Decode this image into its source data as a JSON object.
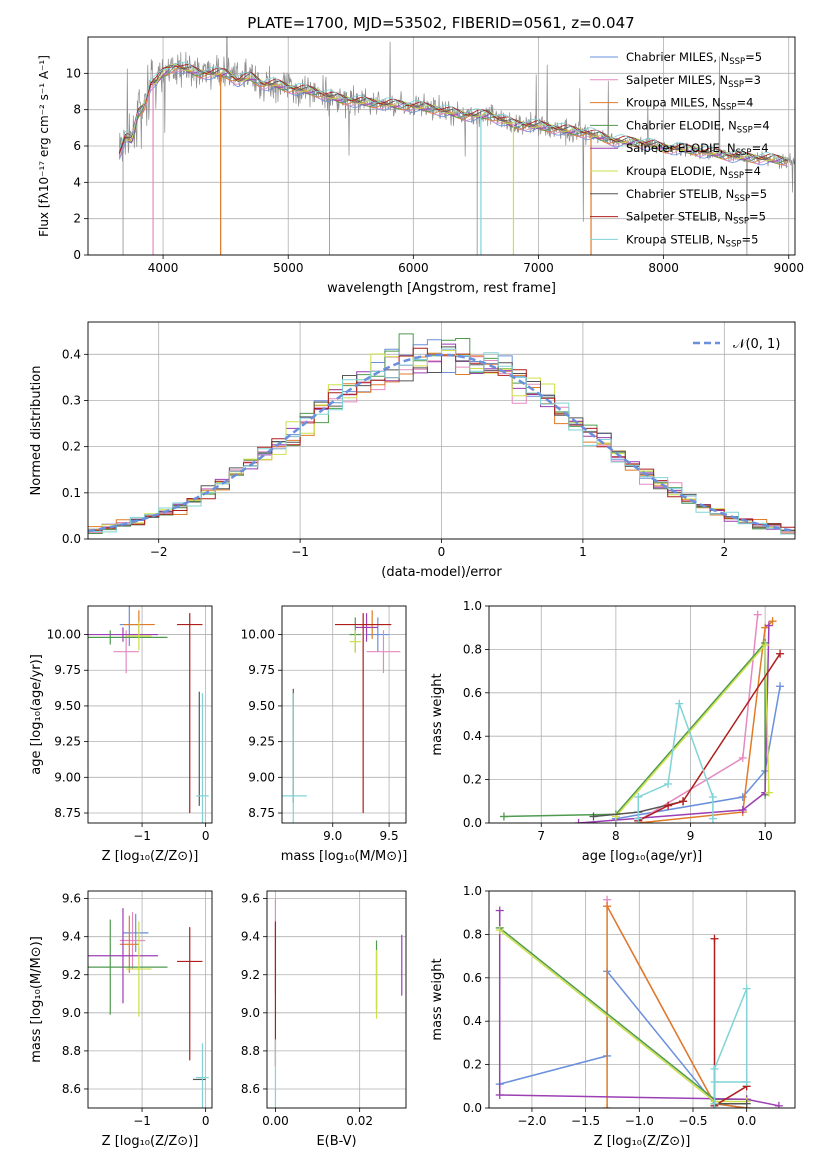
{
  "figure": {
    "title": "PLATE=1700, MJD=53502, FIBERID=0561, z=0.047"
  },
  "colors": {
    "Chabrier MILES": "#6a8fdc",
    "Salpeter MILES": "#e58ac0",
    "Kroupa MILES": "#e07b28",
    "Chabrier ELODIE": "#4f9a4f",
    "Salpeter ELODIE": "#9b3fb3",
    "Kroupa ELODIE": "#cde04a",
    "Chabrier STELIB": "#555555",
    "Salpeter STELIB": "#b01d1d",
    "Kroupa STELIB": "#80d3d6",
    "data": "#8c8c8c"
  },
  "chart_data": [
    {
      "id": "spectrum",
      "type": "line",
      "xlabel": "wavelength [Angstrom, rest frame]",
      "ylabel": "Flux [fλ10⁻¹⁷ erg cm⁻² s⁻¹ A⁻¹]",
      "xlim": [
        3400,
        9050
      ],
      "ylim": [
        0,
        12
      ],
      "xticks": [
        4000,
        5000,
        6000,
        7000,
        8000,
        9000
      ],
      "yticks": [
        0,
        2,
        4,
        6,
        8,
        10
      ],
      "legend_position": "top-right",
      "legend": [
        "Chabrier MILES, N_SSP=5",
        "Salpeter MILES, N_SSP=3",
        "Kroupa MILES, N_SSP=4",
        "Chabrier ELODIE, N_SSP=4",
        "Salpeter ELODIE, N_SSP=4",
        "Kroupa ELODIE, N_SSP=4",
        "Chabrier STELIB, N_SSP=5",
        "Salpeter STELIB, N_SSP=5",
        "Kroupa STELIB, N_SSP=5"
      ],
      "data_series": {
        "x": [
          3650,
          3700,
          3750,
          3800,
          3850,
          3900,
          3950,
          4000,
          4050,
          4100,
          4150,
          4200,
          4300,
          4400,
          4500,
          4600,
          4700,
          4800,
          4900,
          5000,
          5200,
          5400,
          5600,
          5800,
          6000,
          6200,
          6400,
          6600,
          6800,
          7000,
          7200,
          7400,
          7600,
          7800,
          8000,
          8200,
          8400,
          8600,
          8800,
          9000
        ],
        "y": [
          5.6,
          6.5,
          6.3,
          7.8,
          8.2,
          9.4,
          9.6,
          10.0,
          10.2,
          10.4,
          10.3,
          10.2,
          10.0,
          10.0,
          10.0,
          9.6,
          9.8,
          9.4,
          9.4,
          9.2,
          9.0,
          8.6,
          8.4,
          8.3,
          8.2,
          8.0,
          7.7,
          7.7,
          7.2,
          7.1,
          6.9,
          6.7,
          6.3,
          6.2,
          5.9,
          5.8,
          5.6,
          5.4,
          5.3,
          5.2
        ]
      },
      "model_dips": [
        {
          "series": "Salpeter MILES",
          "x": 3920
        },
        {
          "series": "Kroupa MILES",
          "x": 4460
        },
        {
          "series": "Kroupa STELIB",
          "x": 6540
        },
        {
          "series": "Kroupa ELODIE",
          "x": 6800
        },
        {
          "series": "Kroupa MILES",
          "x": 7420
        }
      ]
    },
    {
      "id": "residuals",
      "type": "histogram",
      "xlabel": "(data-model)/error",
      "ylabel": "Normed distribution",
      "xlim": [
        -2.5,
        2.5
      ],
      "ylim": [
        0,
        0.47
      ],
      "xticks": [
        -2,
        -1,
        0,
        1,
        2
      ],
      "yticks": [
        0.0,
        0.1,
        0.2,
        0.3,
        0.4
      ],
      "grid": true,
      "legend_position": "top-right",
      "legend": [
        "𝒩(0, 1)"
      ],
      "curve": {
        "name": "𝒩(0, 1)",
        "mean": 0,
        "sigma": 1,
        "style": "dashed"
      },
      "bin_width": 0.1
    },
    {
      "id": "age-vs-Z",
      "type": "errorbar",
      "xlabel": "Z [log₁₀(Z/Z⊙)]",
      "ylabel": "age  [log₁₀(age/yr)]",
      "xlim": [
        -1.85,
        0.1
      ],
      "ylim": [
        8.68,
        10.2
      ],
      "xticks": [
        -1,
        0
      ],
      "yticks": [
        8.75,
        9.0,
        9.25,
        9.5,
        9.75,
        10.0
      ],
      "points": [
        {
          "series": "Chabrier MILES",
          "x": -1.2,
          "y": 10.07,
          "xerr": 0.15,
          "yerr": 0.15
        },
        {
          "series": "Salpeter MILES",
          "x": -1.25,
          "y": 9.88,
          "xerr": 0.2,
          "yerr": 0.15
        },
        {
          "series": "Kroupa MILES",
          "x": -1.05,
          "y": 10.07,
          "xerr": 0.25,
          "yerr": 0.1
        },
        {
          "series": "Chabrier ELODIE",
          "x": -1.5,
          "y": 9.98,
          "xerr": 0.9,
          "yerr": 0.05
        },
        {
          "series": "Salpeter ELODIE",
          "x": -1.3,
          "y": 10.0,
          "xerr": 0.55,
          "yerr": 0.05
        },
        {
          "series": "Kroupa ELODIE",
          "x": -1.05,
          "y": 9.99,
          "xerr": 0.2,
          "yerr": 0.1
        },
        {
          "series": "Chabrier STELIB",
          "x": -0.1,
          "y": 9.2,
          "xerr": 0.0,
          "yerr": 0.4
        },
        {
          "series": "Salpeter STELIB",
          "x": -0.25,
          "y": 10.07,
          "xerr": 0.2,
          "yerr": 0.0
        },
        {
          "series": "Salpeter STELIB",
          "x": -0.25,
          "y": 9.45,
          "xerr": 0.0,
          "yerr": 0.7
        },
        {
          "series": "Kroupa STELIB",
          "x": -0.05,
          "y": 8.87,
          "xerr": 0.1,
          "yerr": 0.72
        }
      ]
    },
    {
      "id": "age-vs-mass",
      "type": "errorbar",
      "xlabel": "mass [log₁₀(M/M⊙)]",
      "ylabel": "",
      "xlim": [
        8.55,
        9.65
      ],
      "ylim": [
        8.68,
        10.2
      ],
      "xticks": [
        9.0,
        9.5
      ],
      "yticks": [
        8.75,
        9.0,
        9.25,
        9.5,
        9.75,
        10.0
      ],
      "points": [
        {
          "series": "Chabrier MILES",
          "x": 9.4,
          "y": 10.0,
          "xerr": 0.1,
          "yerr": 0.12
        },
        {
          "series": "Salpeter MILES",
          "x": 9.45,
          "y": 9.88,
          "xerr": 0.15,
          "yerr": 0.15
        },
        {
          "series": "Kroupa MILES",
          "x": 9.35,
          "y": 10.07,
          "xerr": 0.1,
          "yerr": 0.1
        },
        {
          "series": "Chabrier ELODIE",
          "x": 9.2,
          "y": 10.0,
          "xerr": 0.05,
          "yerr": 0.12
        },
        {
          "series": "Salpeter ELODIE",
          "x": 9.3,
          "y": 10.05,
          "xerr": 0.1,
          "yerr": 0.1
        },
        {
          "series": "Kroupa ELODIE",
          "x": 9.2,
          "y": 9.95,
          "xerr": 0.05,
          "yerr": 0.08
        },
        {
          "series": "Chabrier STELIB",
          "x": 8.65,
          "y": 9.22,
          "xerr": 0.0,
          "yerr": 0.4
        },
        {
          "series": "Salpeter STELIB",
          "x": 9.27,
          "y": 10.07,
          "xerr": 0.25,
          "yerr": 0.0
        },
        {
          "series": "Salpeter STELIB",
          "x": 9.27,
          "y": 9.45,
          "xerr": 0.0,
          "yerr": 0.7
        },
        {
          "series": "Kroupa STELIB",
          "x": 8.65,
          "y": 8.87,
          "xerr": 0.12,
          "yerr": 0.72
        }
      ]
    },
    {
      "id": "weight-vs-age",
      "type": "line",
      "xlabel": "age  [log₁₀(age/yr)]",
      "ylabel": "mass weight",
      "xlim": [
        6.3,
        10.4
      ],
      "ylim": [
        0,
        1.0
      ],
      "xticks": [
        7,
        8,
        9,
        10
      ],
      "yticks": [
        0.0,
        0.2,
        0.4,
        0.6,
        0.8,
        1.0
      ],
      "grid": true,
      "series": [
        {
          "name": "Chabrier MILES",
          "x": [
            8.0,
            9.7,
            10.0,
            10.2
          ],
          "y": [
            0.02,
            0.12,
            0.24,
            0.63
          ]
        },
        {
          "name": "Salpeter MILES",
          "x": [
            8.3,
            9.7,
            9.9
          ],
          "y": [
            0.01,
            0.3,
            0.96
          ]
        },
        {
          "name": "Kroupa MILES",
          "x": [
            8.3,
            9.7,
            10.0,
            10.1
          ],
          "y": [
            0.0,
            0.05,
            0.9,
            0.93
          ]
        },
        {
          "name": "Chabrier ELODIE",
          "x": [
            6.5,
            8.0,
            10.0,
            10.0
          ],
          "y": [
            0.03,
            0.04,
            0.83,
            0.13
          ]
        },
        {
          "name": "Salpeter ELODIE",
          "x": [
            7.5,
            9.7,
            10.0,
            10.05
          ],
          "y": [
            0.0,
            0.06,
            0.14,
            0.91
          ]
        },
        {
          "name": "Kroupa ELODIE",
          "x": [
            8.0,
            10.0,
            10.05
          ],
          "y": [
            0.03,
            0.82,
            0.14
          ]
        },
        {
          "name": "Chabrier STELIB",
          "x": [
            7.7,
            8.3,
            8.9
          ],
          "y": [
            0.03,
            0.05,
            0.1
          ]
        },
        {
          "name": "Salpeter STELIB",
          "x": [
            8.3,
            8.7,
            8.9,
            10.2
          ],
          "y": [
            0.01,
            0.08,
            0.1,
            0.78
          ]
        },
        {
          "name": "Kroupa STELIB",
          "x": [
            8.3,
            8.3,
            8.7,
            8.85,
            9.3,
            9.3
          ],
          "y": [
            0.02,
            0.12,
            0.18,
            0.55,
            0.12,
            0.02
          ]
        }
      ]
    },
    {
      "id": "mass-vs-Z",
      "type": "errorbar",
      "xlabel": "Z [log₁₀(Z/Z⊙)]",
      "ylabel": "mass [log₁₀(M/M⊙)]",
      "xlim": [
        -1.85,
        0.1
      ],
      "ylim": [
        8.5,
        9.64
      ],
      "xticks": [
        -1,
        0
      ],
      "yticks": [
        8.6,
        8.8,
        9.0,
        9.2,
        9.4,
        9.6
      ],
      "points": [
        {
          "series": "Chabrier MILES",
          "x": -1.1,
          "y": 9.42,
          "xerr": 0.2,
          "yerr": 0.1
        },
        {
          "series": "Salpeter MILES",
          "x": -1.15,
          "y": 9.38,
          "xerr": 0.2,
          "yerr": 0.15
        },
        {
          "series": "Kroupa MILES",
          "x": -1.2,
          "y": 9.36,
          "xerr": 0.15,
          "yerr": 0.15
        },
        {
          "series": "Chabrier ELODIE",
          "x": -1.5,
          "y": 9.24,
          "xerr": 0.9,
          "yerr": 0.25
        },
        {
          "series": "Salpeter ELODIE",
          "x": -1.3,
          "y": 9.3,
          "xerr": 0.55,
          "yerr": 0.25
        },
        {
          "series": "Kroupa ELODIE",
          "x": -1.05,
          "y": 9.23,
          "xerr": 0.2,
          "yerr": 0.25
        },
        {
          "series": "Chabrier STELIB",
          "x": -0.1,
          "y": 8.65,
          "xerr": 0.1,
          "yerr": 0.0
        },
        {
          "series": "Salpeter STELIB",
          "x": -0.25,
          "y": 9.27,
          "xerr": 0.2,
          "yerr": 0.0
        },
        {
          "series": "Salpeter STELIB",
          "x": -0.25,
          "y": 9.1,
          "xerr": 0.0,
          "yerr": 0.35
        },
        {
          "series": "Kroupa STELIB",
          "x": -0.05,
          "y": 8.66,
          "xerr": 0.1,
          "yerr": 0.18
        }
      ]
    },
    {
      "id": "mass-vs-EBV",
      "type": "errorbar",
      "xlabel": "E(B-V)",
      "ylabel": "",
      "xlim": [
        -0.002,
        0.031
      ],
      "ylim": [
        8.5,
        9.64
      ],
      "xticks": [
        0.0,
        0.02
      ],
      "yticks": [
        8.6,
        8.8,
        9.0,
        9.2,
        9.4,
        9.6
      ],
      "points": [
        {
          "series": "Salpeter MILES",
          "x": 0.0,
          "y": 9.35,
          "xerr": 0.0,
          "yerr": 0.25
        },
        {
          "series": "Salpeter STELIB",
          "x": 0.0,
          "y": 9.1,
          "xerr": 0.0,
          "yerr": 0.38
        },
        {
          "series": "Kroupa STELIB",
          "x": 0.0,
          "y": 8.66,
          "xerr": 0.0,
          "yerr": 0.2
        },
        {
          "series": "Chabrier ELODIE",
          "x": 0.024,
          "y": 9.2,
          "xerr": 0.0,
          "yerr": 0.18
        },
        {
          "series": "Kroupa ELODIE",
          "x": 0.024,
          "y": 9.15,
          "xerr": 0.0,
          "yerr": 0.18
        },
        {
          "series": "Salpeter ELODIE",
          "x": 0.03,
          "y": 9.25,
          "xerr": 0.0,
          "yerr": 0.16
        }
      ]
    },
    {
      "id": "weight-vs-Z",
      "type": "line",
      "xlabel": "Z [log₁₀(Z/Z⊙)]",
      "ylabel": "mass weight",
      "xlim": [
        -2.4,
        0.45
      ],
      "ylim": [
        0,
        1.0
      ],
      "xticks": [
        -2.0,
        -1.5,
        -1.0,
        -0.5,
        0.0
      ],
      "yticks": [
        0.0,
        0.2,
        0.4,
        0.6,
        0.8,
        1.0
      ],
      "grid": true,
      "series": [
        {
          "name": "Chabrier MILES",
          "x": [
            -2.3,
            -1.3,
            -1.3,
            -0.3,
            0.0
          ],
          "y": [
            0.11,
            0.24,
            0.63,
            0.02,
            0.0
          ]
        },
        {
          "name": "Salpeter MILES",
          "x": [
            -1.3,
            -1.3,
            -0.3,
            0.0
          ],
          "y": [
            0.96,
            0.93,
            0.02,
            0.0
          ]
        },
        {
          "name": "Kroupa MILES",
          "x": [
            -1.3,
            -1.3,
            -0.3,
            0.0
          ],
          "y": [
            0.0,
            0.93,
            0.02,
            0.0
          ]
        },
        {
          "name": "Chabrier ELODIE",
          "x": [
            -2.3,
            -0.3,
            0.0
          ],
          "y": [
            0.83,
            0.04,
            0.04
          ]
        },
        {
          "name": "Salpeter ELODIE",
          "x": [
            -2.3,
            -2.3,
            0.0,
            0.3
          ],
          "y": [
            0.91,
            0.06,
            0.04,
            0.01
          ]
        },
        {
          "name": "Kroupa ELODIE",
          "x": [
            -2.3,
            -0.3,
            0.0
          ],
          "y": [
            0.82,
            0.03,
            0.03
          ]
        },
        {
          "name": "Chabrier STELIB",
          "x": [
            -0.3,
            0.0
          ],
          "y": [
            0.02,
            0.02
          ]
        },
        {
          "name": "Salpeter STELIB",
          "x": [
            -0.3,
            -0.3,
            0.0
          ],
          "y": [
            0.78,
            0.01,
            0.1
          ]
        },
        {
          "name": "Kroupa STELIB",
          "x": [
            -0.3,
            -0.3,
            0.0,
            0.0,
            -0.3
          ],
          "y": [
            0.02,
            0.18,
            0.55,
            0.12,
            0.12
          ]
        }
      ]
    }
  ]
}
